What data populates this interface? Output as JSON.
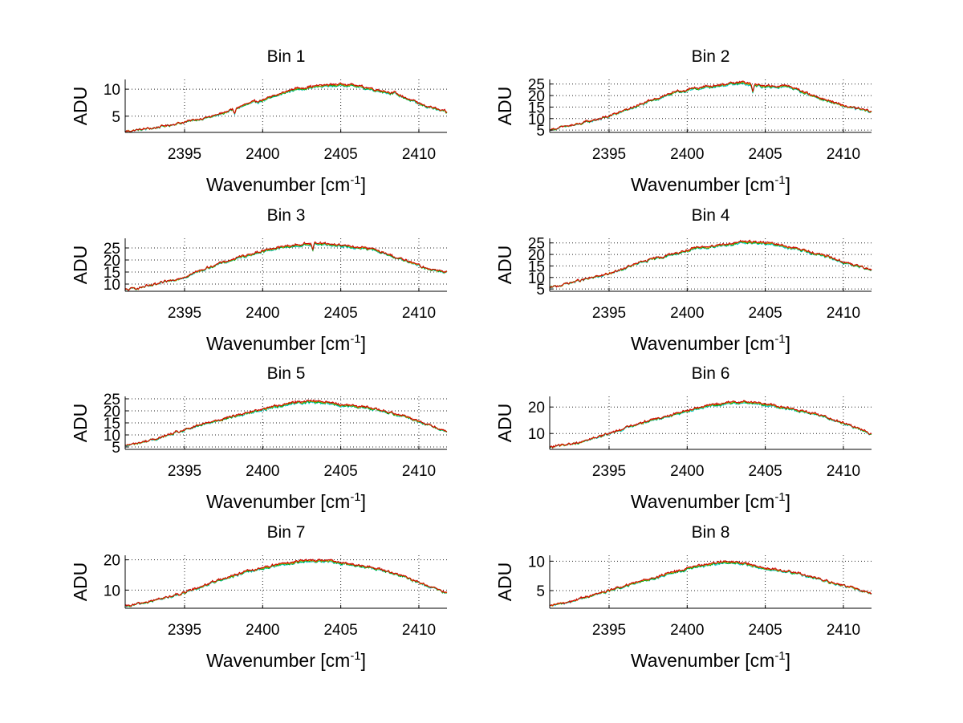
{
  "chart_data": [
    {
      "type": "line",
      "title": "Bin 1",
      "xlabel": "Wavenumber [cm",
      "xlabel_sup": "-1",
      "xlabel_close": "]",
      "ylabel": "ADU",
      "xlim": [
        2391.2,
        2411.8
      ],
      "ylim": [
        2,
        11.8
      ],
      "xticks": [
        2395,
        2400,
        2405,
        2410
      ],
      "yticks": [
        5,
        10
      ],
      "grid": true,
      "peak_x": 2404.5,
      "colors": [
        "#00cccc",
        "#00aa00",
        "#dd8800",
        "#cc0000"
      ],
      "profile": [
        [
          2391.2,
          2.2
        ],
        [
          2393,
          2.8
        ],
        [
          2395,
          3.9
        ],
        [
          2397,
          5.1
        ],
        [
          2399,
          7.2
        ],
        [
          2400.5,
          8.4
        ],
        [
          2402,
          10.0
        ],
        [
          2404,
          10.7
        ],
        [
          2405.5,
          10.9
        ],
        [
          2407,
          10.0
        ],
        [
          2408.5,
          9.2
        ],
        [
          2410,
          7.3
        ],
        [
          2411.8,
          5.7
        ]
      ],
      "dips": [
        {
          "x": 2398.2,
          "y": 5.3
        }
      ]
    },
    {
      "type": "line",
      "title": "Bin 2",
      "xlabel": "Wavenumber [cm",
      "xlabel_sup": "-1",
      "xlabel_close": "]",
      "ylabel": "ADU",
      "xlim": [
        2391.2,
        2411.8
      ],
      "ylim": [
        4,
        27
      ],
      "xticks": [
        2395,
        2400,
        2405,
        2410
      ],
      "yticks": [
        5,
        10,
        15,
        20,
        25
      ],
      "grid": true,
      "peak_x": 2403.5,
      "colors": [
        "#00cccc",
        "#00aa00",
        "#dd8800",
        "#cc0000"
      ],
      "profile": [
        [
          2391.2,
          5.2
        ],
        [
          2393,
          7.5
        ],
        [
          2395,
          11.0
        ],
        [
          2397,
          16.0
        ],
        [
          2399,
          21.0
        ],
        [
          2400.5,
          23.0
        ],
        [
          2402,
          24.5
        ],
        [
          2403.5,
          25.5
        ],
        [
          2405,
          24.0
        ],
        [
          2406.5,
          24.0
        ],
        [
          2408,
          20.0
        ],
        [
          2410,
          15.5
        ],
        [
          2411.8,
          13.0
        ]
      ],
      "dips": [
        {
          "x": 2404.2,
          "y": 21.0
        }
      ]
    },
    {
      "type": "line",
      "title": "Bin 3",
      "xlabel": "Wavenumber [cm",
      "xlabel_sup": "-1",
      "xlabel_close": "]",
      "ylabel": "ADU",
      "xlim": [
        2391.2,
        2411.8
      ],
      "ylim": [
        7,
        29
      ],
      "xticks": [
        2395,
        2400,
        2405,
        2410
      ],
      "yticks": [
        10,
        15,
        20,
        25
      ],
      "grid": true,
      "peak_x": 2403.5,
      "colors": [
        "#00cccc",
        "#00aa00",
        "#dd8800",
        "#cc0000"
      ],
      "profile": [
        [
          2391.2,
          7.5
        ],
        [
          2393,
          9.5
        ],
        [
          2395,
          13.0
        ],
        [
          2397,
          18.0
        ],
        [
          2399,
          22.0
        ],
        [
          2400.5,
          24.5
        ],
        [
          2402,
          26.0
        ],
        [
          2403.5,
          27.0
        ],
        [
          2405,
          26.0
        ],
        [
          2407,
          24.5
        ],
        [
          2409,
          20.0
        ],
        [
          2410.5,
          16.5
        ],
        [
          2411.8,
          15.0
        ]
      ],
      "dips": [
        {
          "x": 2403.2,
          "y": 24.0
        }
      ]
    },
    {
      "type": "line",
      "title": "Bin 4",
      "xlabel": "Wavenumber [cm",
      "xlabel_sup": "-1",
      "xlabel_close": "]",
      "ylabel": "ADU",
      "xlim": [
        2391.2,
        2411.8
      ],
      "ylim": [
        4,
        27
      ],
      "xticks": [
        2395,
        2400,
        2405,
        2410
      ],
      "yticks": [
        5,
        10,
        15,
        20,
        25
      ],
      "grid": true,
      "peak_x": 2404.0,
      "colors": [
        "#00cccc",
        "#00aa00",
        "#dd8800",
        "#cc0000"
      ],
      "profile": [
        [
          2391.2,
          5.5
        ],
        [
          2393,
          8.5
        ],
        [
          2395,
          11.5
        ],
        [
          2397,
          16.5
        ],
        [
          2399,
          20.0
        ],
        [
          2400.5,
          22.5
        ],
        [
          2402,
          24.0
        ],
        [
          2404,
          25.5
        ],
        [
          2405.5,
          24.5
        ],
        [
          2407,
          22.5
        ],
        [
          2409,
          19.0
        ],
        [
          2410.5,
          15.5
        ],
        [
          2411.8,
          13.5
        ]
      ],
      "dips": []
    },
    {
      "type": "line",
      "title": "Bin 5",
      "xlabel": "Wavenumber [cm",
      "xlabel_sup": "-1",
      "xlabel_close": "]",
      "ylabel": "ADU",
      "xlim": [
        2391.2,
        2411.8
      ],
      "ylim": [
        4,
        26
      ],
      "xticks": [
        2395,
        2400,
        2405,
        2410
      ],
      "yticks": [
        5,
        10,
        15,
        20,
        25
      ],
      "grid": true,
      "peak_x": 2403.0,
      "colors": [
        "#00cccc",
        "#00aa00",
        "#dd8800",
        "#cc0000"
      ],
      "profile": [
        [
          2391.2,
          5.5
        ],
        [
          2393,
          8.0
        ],
        [
          2395,
          12.0
        ],
        [
          2397,
          16.0
        ],
        [
          2399,
          19.0
        ],
        [
          2400.5,
          21.5
        ],
        [
          2402,
          23.5
        ],
        [
          2403.5,
          24.0
        ],
        [
          2405,
          22.5
        ],
        [
          2407,
          21.0
        ],
        [
          2409,
          18.0
        ],
        [
          2410.5,
          14.5
        ],
        [
          2411.8,
          11.5
        ]
      ],
      "dips": []
    },
    {
      "type": "line",
      "title": "Bin 6",
      "xlabel": "Wavenumber [cm",
      "xlabel_sup": "-1",
      "xlabel_close": "]",
      "ylabel": "ADU",
      "xlim": [
        2391.2,
        2411.8
      ],
      "ylim": [
        4,
        24
      ],
      "xticks": [
        2395,
        2400,
        2405,
        2410
      ],
      "yticks": [
        10,
        20
      ],
      "grid": true,
      "peak_x": 2403.5,
      "colors": [
        "#00cccc",
        "#00aa00",
        "#dd8800",
        "#cc0000"
      ],
      "profile": [
        [
          2391.2,
          4.8
        ],
        [
          2393,
          6.5
        ],
        [
          2395,
          10.0
        ],
        [
          2397,
          14.0
        ],
        [
          2399,
          17.0
        ],
        [
          2400.5,
          19.5
        ],
        [
          2402,
          21.0
        ],
        [
          2403.5,
          22.0
        ],
        [
          2405,
          21.0
        ],
        [
          2407,
          19.0
        ],
        [
          2409,
          16.0
        ],
        [
          2410.5,
          13.0
        ],
        [
          2411.8,
          9.8
        ]
      ],
      "dips": []
    },
    {
      "type": "line",
      "title": "Bin 7",
      "xlabel": "Wavenumber [cm",
      "xlabel_sup": "-1",
      "xlabel_close": "]",
      "ylabel": "ADU",
      "xlim": [
        2391.2,
        2411.8
      ],
      "ylim": [
        4,
        21.5
      ],
      "xticks": [
        2395,
        2400,
        2405,
        2410
      ],
      "yticks": [
        10,
        20
      ],
      "grid": true,
      "peak_x": 2402.5,
      "colors": [
        "#00cccc",
        "#00aa00",
        "#dd8800",
        "#cc0000"
      ],
      "profile": [
        [
          2391.2,
          4.5
        ],
        [
          2393,
          6.5
        ],
        [
          2395,
          9.0
        ],
        [
          2397,
          13.0
        ],
        [
          2399,
          16.0
        ],
        [
          2401,
          18.5
        ],
        [
          2402.5,
          19.5
        ],
        [
          2404,
          19.8
        ],
        [
          2405.5,
          18.5
        ],
        [
          2407,
          17.5
        ],
        [
          2409,
          14.5
        ],
        [
          2410.5,
          11.5
        ],
        [
          2411.8,
          9.0
        ]
      ],
      "dips": []
    },
    {
      "type": "line",
      "title": "Bin 8",
      "xlabel": "Wavenumber [cm",
      "xlabel_sup": "-1",
      "xlabel_close": "]",
      "ylabel": "ADU",
      "xlim": [
        2391.2,
        2411.8
      ],
      "ylim": [
        2,
        11
      ],
      "xticks": [
        2395,
        2400,
        2405,
        2410
      ],
      "yticks": [
        5,
        10
      ],
      "grid": true,
      "peak_x": 2402.0,
      "colors": [
        "#00cccc",
        "#00aa00",
        "#dd8800",
        "#cc0000"
      ],
      "profile": [
        [
          2391.2,
          2.3
        ],
        [
          2393,
          3.5
        ],
        [
          2395,
          5.0
        ],
        [
          2397,
          6.5
        ],
        [
          2399,
          8.0
        ],
        [
          2400.5,
          9.0
        ],
        [
          2402,
          9.8
        ],
        [
          2403.5,
          9.7
        ],
        [
          2405,
          8.8
        ],
        [
          2407,
          8.0
        ],
        [
          2409,
          6.5
        ],
        [
          2410.5,
          5.5
        ],
        [
          2411.8,
          4.5
        ]
      ],
      "dips": []
    }
  ]
}
